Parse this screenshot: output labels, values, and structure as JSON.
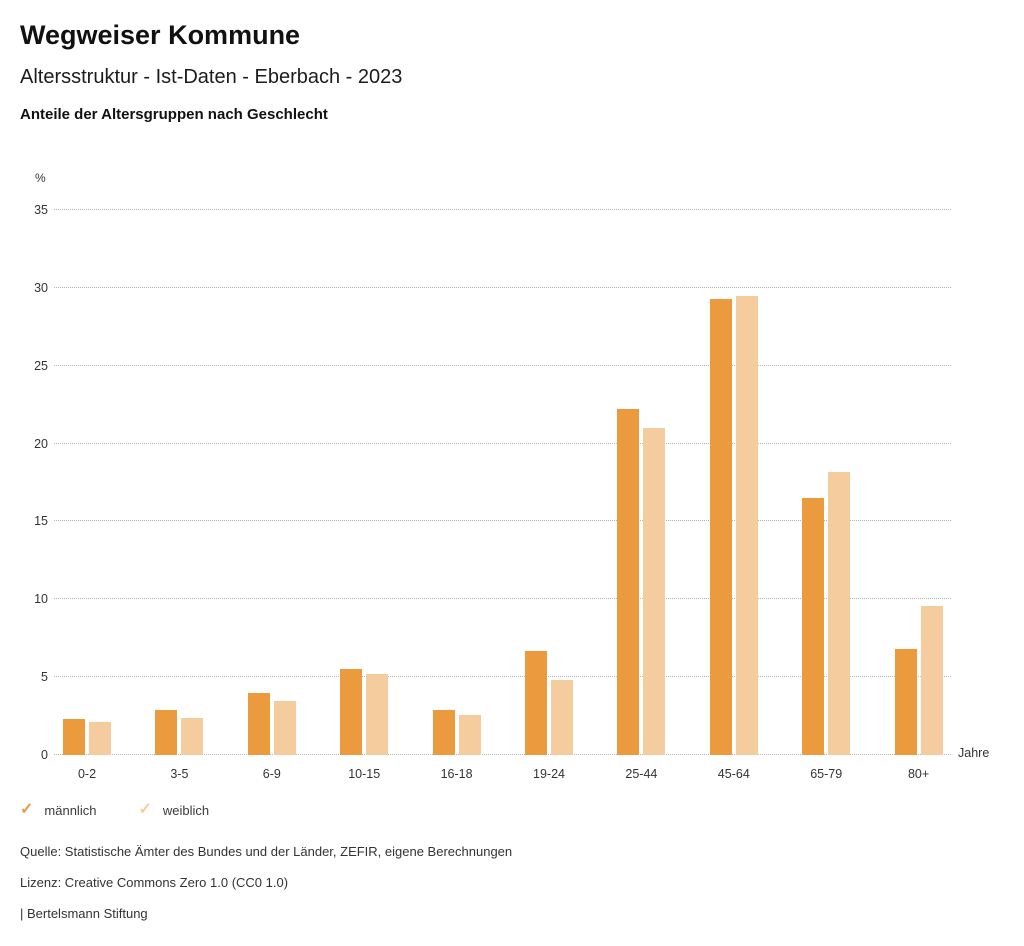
{
  "header": {
    "title": "Wegweiser Kommune",
    "subtitle": "Altersstruktur - Ist-Daten - Eberbach - 2023",
    "section_title": "Anteile der Altersgruppen nach Geschlecht"
  },
  "chart_data": {
    "type": "bar",
    "title": "Anteile der Altersgruppen nach Geschlecht",
    "unit_label": "%",
    "x_axis_label": "Jahre",
    "categories": [
      "0-2",
      "3-5",
      "6-9",
      "10-15",
      "16-18",
      "19-24",
      "25-44",
      "45-64",
      "65-79",
      "80+"
    ],
    "series": [
      {
        "name": "männlich",
        "color": "#EB9A3D",
        "values": [
          2.3,
          2.9,
          4.0,
          5.5,
          2.9,
          6.7,
          22.2,
          29.3,
          16.5,
          6.8
        ]
      },
      {
        "name": "weiblich",
        "color": "#F5CC9D",
        "values": [
          2.1,
          2.4,
          3.5,
          5.2,
          2.6,
          4.8,
          21.0,
          29.5,
          18.2,
          9.6
        ]
      }
    ],
    "ylim": [
      0,
      35
    ],
    "ytick_step": 5,
    "grid": "horizontal-dotted",
    "legend_position": "bottom-left"
  },
  "legend": {
    "items": [
      {
        "label": "männlich",
        "color": "#EB9A3D",
        "icon": "check-icon"
      },
      {
        "label": "weiblich",
        "color": "#F5CC9D",
        "icon": "check-icon"
      }
    ]
  },
  "footer": {
    "source_line": "Quelle: Statistische Ämter des Bundes und der Länder, ZEFIR, eigene Berechnungen",
    "license_line": "Lizenz: Creative Commons Zero 1.0 (CC0 1.0)",
    "attribution_line": "| Bertelsmann Stiftung"
  }
}
